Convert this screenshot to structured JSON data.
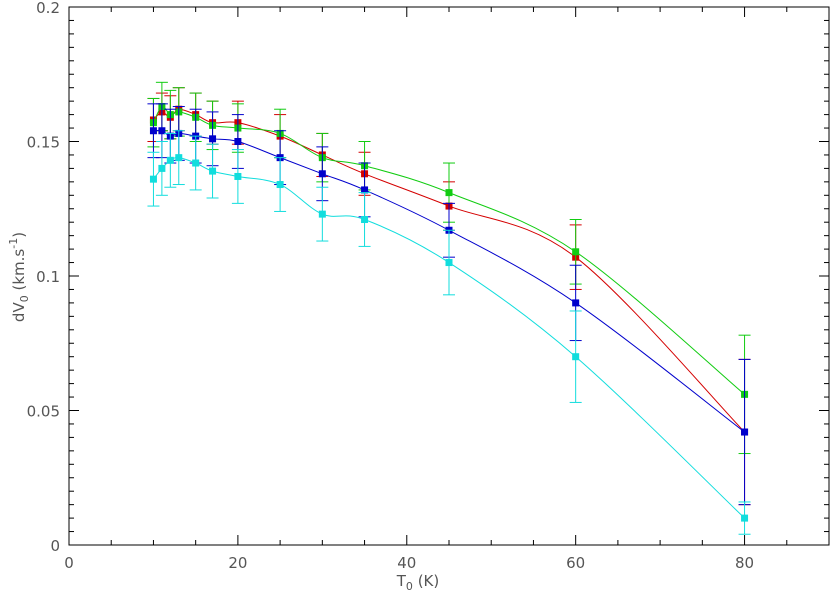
{
  "chart_data": {
    "type": "scatter",
    "title": "",
    "xlabel": {
      "main": "T",
      "sub": "0",
      "rest": " (K)"
    },
    "ylabel": {
      "main": "dV",
      "sub": "0",
      "rest": " (km.s",
      "sup": "-1",
      "end": ")"
    },
    "xlim": [
      0,
      90
    ],
    "ylim": [
      0,
      0.2
    ],
    "xticks": [
      {
        "value": 0,
        "label": "0"
      },
      {
        "value": 20,
        "label": "20"
      },
      {
        "value": 40,
        "label": "40"
      },
      {
        "value": 60,
        "label": "60"
      },
      {
        "value": 80,
        "label": "80"
      }
    ],
    "yticks": [
      {
        "value": 0,
        "label": "0"
      },
      {
        "value": 0.05,
        "label": "0.05"
      },
      {
        "value": 0.1,
        "label": "0.1"
      },
      {
        "value": 0.15,
        "label": "0.15"
      },
      {
        "value": 0.2,
        "label": "0.2"
      }
    ],
    "x": [
      10,
      11,
      12,
      13,
      15,
      17,
      20,
      25,
      30,
      35,
      45,
      60,
      80
    ],
    "series": [
      {
        "color": "#d40000",
        "values": [
          0.158,
          0.161,
          0.159,
          0.162,
          0.16,
          0.157,
          0.157,
          0.152,
          0.145,
          0.138,
          0.126,
          0.107,
          0.042
        ],
        "errors": [
          0.008,
          0.007,
          0.008,
          0.008,
          0.008,
          0.008,
          0.008,
          0.008,
          0.008,
          0.008,
          0.009,
          0.012,
          0.027
        ]
      },
      {
        "color": "#11cc11",
        "values": [
          0.157,
          0.163,
          0.16,
          0.161,
          0.159,
          0.156,
          0.155,
          0.153,
          0.144,
          0.141,
          0.131,
          0.109,
          0.056
        ],
        "errors": [
          0.009,
          0.009,
          0.009,
          0.009,
          0.009,
          0.009,
          0.009,
          0.009,
          0.009,
          0.009,
          0.011,
          0.012,
          0.022
        ]
      },
      {
        "color": "#0000cc",
        "values": [
          0.154,
          0.154,
          0.152,
          0.153,
          0.152,
          0.151,
          0.15,
          0.144,
          0.138,
          0.132,
          0.117,
          0.09,
          0.042
        ],
        "errors": [
          0.01,
          0.01,
          0.01,
          0.01,
          0.01,
          0.01,
          0.01,
          0.01,
          0.01,
          0.01,
          0.01,
          0.014,
          0.027
        ]
      },
      {
        "color": "#11dddd",
        "values": [
          0.136,
          0.14,
          0.143,
          0.144,
          0.142,
          0.139,
          0.137,
          0.134,
          0.123,
          0.121,
          0.105,
          0.07,
          0.01
        ],
        "errors": [
          0.01,
          0.01,
          0.01,
          0.01,
          0.01,
          0.01,
          0.01,
          0.01,
          0.01,
          0.01,
          0.012,
          0.017,
          0.006
        ]
      }
    ],
    "grid": false,
    "legend": "none"
  }
}
